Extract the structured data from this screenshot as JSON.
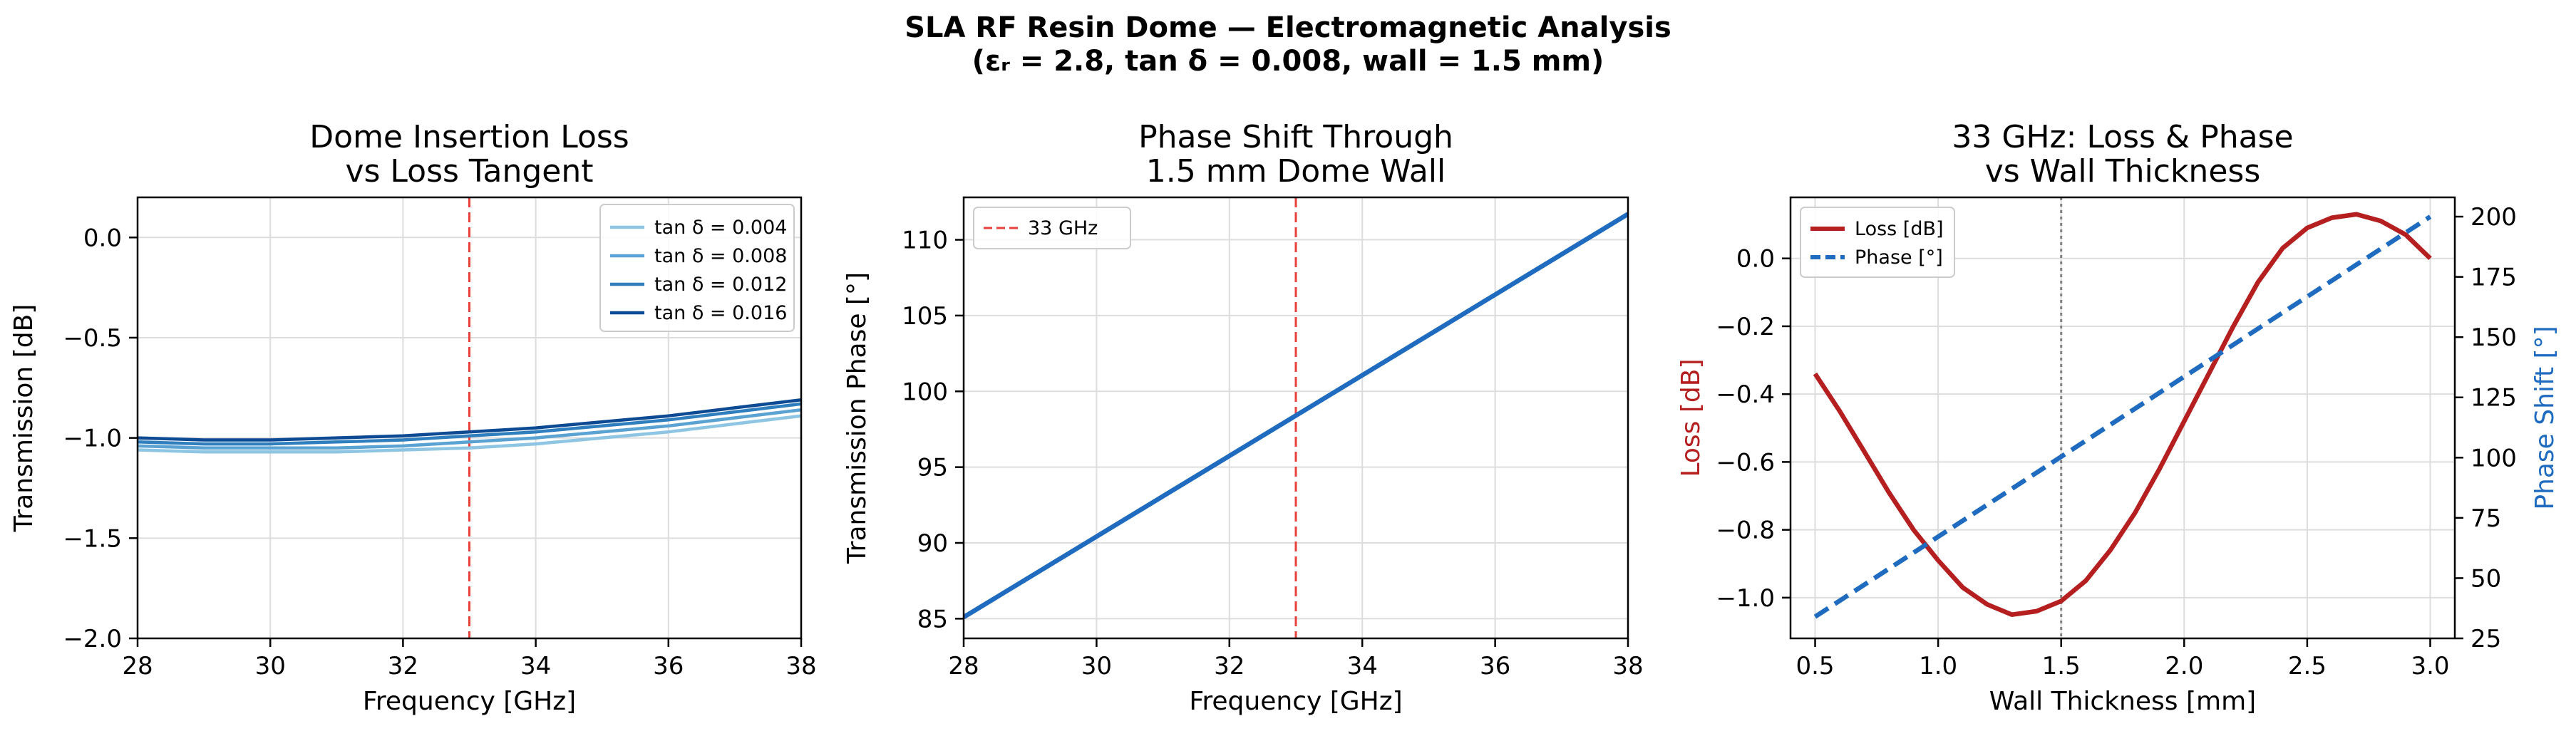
{
  "figure": {
    "title_line1": "SLA RF Resin Dome — Electromagnetic Analysis",
    "title_line2": "(εᵣ = 2.8, tan δ = 0.008, wall = 1.5 mm)"
  },
  "colors": {
    "tan004": "#8ec5e3",
    "tan008": "#5aa2d2",
    "tan012": "#2f7ebd",
    "tan016": "#0d4a94",
    "phase_line": "#1f6bc0",
    "ref_line": "#e8413c",
    "loss_line": "#b51f1f",
    "phase_dashed": "#1f6bc0",
    "thickness_marker": "#808080"
  },
  "chart_data": [
    {
      "type": "line",
      "title": [
        "Dome Insertion Loss",
        "vs Loss Tangent"
      ],
      "xlabel": "Frequency [GHz]",
      "ylabel": "Transmission [dB]",
      "xlim": [
        28,
        38
      ],
      "ylim": [
        -2.0,
        0.2
      ],
      "xticks": [
        28,
        30,
        32,
        34,
        36,
        38
      ],
      "yticks": [
        0.0,
        -0.5,
        -1.0,
        -1.5,
        -2.0
      ],
      "ytick_labels": [
        "0.0",
        "−0.5",
        "−1.0",
        "−1.5",
        "−2.0"
      ],
      "grid": true,
      "legend_position": "top-right",
      "reference_line": {
        "x": 33,
        "label": ""
      },
      "x": [
        28,
        29,
        30,
        31,
        32,
        33,
        34,
        35,
        36,
        37,
        38
      ],
      "series": [
        {
          "name": "tan δ = 0.004",
          "color": "#8ec5e3",
          "values": [
            -1.06,
            -1.07,
            -1.07,
            -1.07,
            -1.06,
            -1.05,
            -1.03,
            -1.0,
            -0.97,
            -0.93,
            -0.89
          ]
        },
        {
          "name": "tan δ = 0.008",
          "color": "#5aa2d2",
          "values": [
            -1.04,
            -1.05,
            -1.05,
            -1.05,
            -1.04,
            -1.02,
            -1.0,
            -0.97,
            -0.94,
            -0.9,
            -0.86
          ]
        },
        {
          "name": "tan δ = 0.012",
          "color": "#2f7ebd",
          "values": [
            -1.02,
            -1.03,
            -1.03,
            -1.02,
            -1.01,
            -0.99,
            -0.97,
            -0.94,
            -0.91,
            -0.87,
            -0.83
          ]
        },
        {
          "name": "tan δ = 0.016",
          "color": "#0d4a94",
          "values": [
            -1.0,
            -1.01,
            -1.01,
            -1.0,
            -0.99,
            -0.97,
            -0.95,
            -0.92,
            -0.89,
            -0.85,
            -0.81
          ]
        }
      ]
    },
    {
      "type": "line",
      "title": [
        "Phase Shift Through",
        "1.5 mm Dome Wall"
      ],
      "xlabel": "Frequency [GHz]",
      "ylabel": "Transmission Phase [°]",
      "xlim": [
        28,
        38
      ],
      "ylim": [
        83.7,
        112.8
      ],
      "xticks": [
        28,
        30,
        32,
        34,
        36,
        38
      ],
      "yticks": [
        85,
        90,
        95,
        100,
        105,
        110
      ],
      "grid": true,
      "legend_position": "top-left",
      "reference_line": {
        "x": 33,
        "label": "33 GHz"
      },
      "x": [
        28,
        38
      ],
      "series": [
        {
          "name": "",
          "color": "#1f6bc0",
          "values": [
            85.1,
            111.7
          ]
        }
      ]
    },
    {
      "type": "line",
      "title": [
        "33 GHz: Loss & Phase",
        "vs Wall Thickness"
      ],
      "xlabel": "Wall Thickness [mm]",
      "ylabel": "Loss [dB]",
      "ylabel_right": "Phase Shift [°]",
      "xlim": [
        0.4,
        3.1
      ],
      "ylim": [
        -1.12,
        0.18
      ],
      "ylim_right": [
        25,
        208
      ],
      "xticks": [
        0.5,
        1.0,
        1.5,
        2.0,
        2.5,
        3.0
      ],
      "xtick_labels": [
        "0.5",
        "1.0",
        "1.5",
        "2.0",
        "2.5",
        "3.0"
      ],
      "yticks": [
        0.0,
        -0.2,
        -0.4,
        -0.6,
        -0.8,
        -1.0
      ],
      "ytick_labels": [
        "0.0",
        "−0.2",
        "−0.4",
        "−0.6",
        "−0.8",
        "−1.0"
      ],
      "yticks_right": [
        25,
        50,
        75,
        100,
        125,
        150,
        175,
        200
      ],
      "grid": true,
      "legend_position": "top-left",
      "reference_line": {
        "x": 1.5,
        "label": ""
      },
      "x": [
        0.5,
        0.6,
        0.7,
        0.8,
        0.9,
        1.0,
        1.1,
        1.2,
        1.3,
        1.4,
        1.5,
        1.6,
        1.7,
        1.8,
        1.9,
        2.0,
        2.1,
        2.2,
        2.3,
        2.4,
        2.5,
        2.6,
        2.7,
        2.8,
        2.9,
        3.0
      ],
      "series": [
        {
          "name": "Loss [dB]",
          "color": "#b51f1f",
          "axis": "left",
          "values": [
            -0.34,
            -0.45,
            -0.57,
            -0.69,
            -0.8,
            -0.89,
            -0.97,
            -1.02,
            -1.05,
            -1.04,
            -1.01,
            -0.95,
            -0.86,
            -0.75,
            -0.62,
            -0.48,
            -0.34,
            -0.2,
            -0.07,
            0.03,
            0.09,
            0.12,
            0.13,
            0.11,
            0.07,
            0.0
          ]
        },
        {
          "name": "Phase [°]",
          "color": "#1f6bc0",
          "axis": "right",
          "dashed": true,
          "x": [
            0.5,
            3.0
          ],
          "values": [
            34,
            200
          ]
        }
      ]
    }
  ]
}
